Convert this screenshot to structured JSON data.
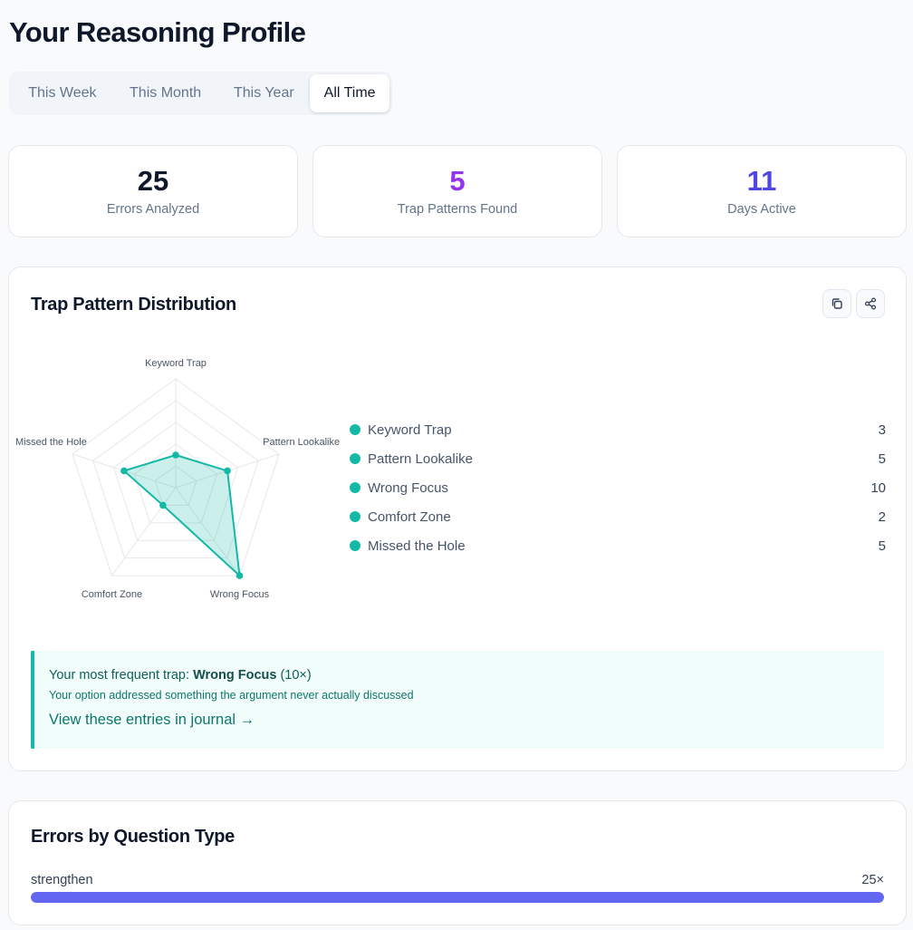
{
  "page": {
    "title": "Your Reasoning Profile"
  },
  "tabs": [
    {
      "label": "This Week",
      "active": false
    },
    {
      "label": "This Month",
      "active": false
    },
    {
      "label": "This Year",
      "active": false
    },
    {
      "label": "All Time",
      "active": true
    }
  ],
  "stats": [
    {
      "value": "25",
      "label": "Errors Analyzed",
      "color": "#0f172a"
    },
    {
      "value": "5",
      "label": "Trap Patterns Found",
      "color": "#9333ea"
    },
    {
      "value": "11",
      "label": "Days Active",
      "color": "#4f46e5"
    }
  ],
  "distribution": {
    "title": "Trap Pattern Distribution",
    "actions": {
      "copy_icon": "copy-icon",
      "share_icon": "share-icon"
    },
    "insight": {
      "prefix": "Your most frequent trap: ",
      "trap": "Wrong Focus",
      "count": "(10×)",
      "description": "Your option addressed something the argument never actually discussed",
      "link": "View these entries in journal →"
    }
  },
  "chart_data": {
    "type": "radar",
    "axes": [
      "Keyword Trap",
      "Pattern Lookalike",
      "Wrong Focus",
      "Comfort Zone",
      "Missed the Hole"
    ],
    "values": [
      3,
      5,
      10,
      2,
      5
    ],
    "rmax": 10,
    "grid_levels": 5,
    "color": "#14b8a6",
    "legend": "right"
  },
  "question_types": {
    "title": "Errors by Question Type",
    "items": [
      {
        "label": "strengthen",
        "count": "25×",
        "fraction": 1.0
      }
    ],
    "bar_color": "#6366f1"
  }
}
